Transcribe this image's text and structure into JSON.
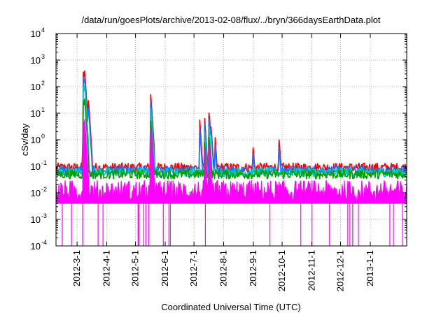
{
  "chart_data": {
    "type": "line",
    "title": "/data/run/goesPlots/archive/2013-02-08/flux/../bryn/366daysEarthData.plot",
    "xlabel": "Coordinated Universal Time (UTC)",
    "ylabel": "cSv/day",
    "yscale": "log",
    "ylim": [
      0.0001,
      10000
    ],
    "xlim": [
      "2012-02-08",
      "2013-02-08"
    ],
    "grid": true,
    "legend": "none",
    "y_ticks": [
      {
        "base": "10",
        "exp": "-4",
        "value": 0.0001
      },
      {
        "base": "10",
        "exp": "-3",
        "value": 0.001
      },
      {
        "base": "10",
        "exp": "-2",
        "value": 0.01
      },
      {
        "base": "10",
        "exp": "-1",
        "value": 0.1
      },
      {
        "base": "10",
        "exp": "0",
        "value": 1
      },
      {
        "base": "10",
        "exp": "1",
        "value": 10
      },
      {
        "base": "10",
        "exp": "2",
        "value": 100
      },
      {
        "base": "10",
        "exp": "3",
        "value": 1000
      },
      {
        "base": "10",
        "exp": "4",
        "value": 10000
      }
    ],
    "x_ticks": [
      "2012-3-1",
      "2012-4-1",
      "2012-5-1",
      "2012-6-1",
      "2012-7-1",
      "2012-8-1",
      "2012-9-1",
      "2012-10-1",
      "2012-11-1",
      "2012-12-1",
      "2013-1-1"
    ],
    "series": [
      {
        "color": "#ff0000",
        "baseline": 0.09,
        "x": [
          "2012-03-07",
          "2012-03-08",
          "2012-03-09",
          "2012-03-10",
          "2012-03-13",
          "2012-05-17",
          "2012-05-18",
          "2012-07-07",
          "2012-07-12",
          "2012-07-17",
          "2012-07-19",
          "2012-07-23",
          "2012-09-01",
          "2012-09-28"
        ],
        "values": [
          0.5,
          350,
          400,
          60,
          30,
          50,
          4,
          6,
          8,
          10,
          3,
          1.5,
          0.5,
          1.0
        ]
      },
      {
        "color": "#1e6fff",
        "baseline": 0.07,
        "x": [
          "2012-03-07",
          "2012-03-08",
          "2012-03-09",
          "2012-03-10",
          "2012-03-13",
          "2012-05-17",
          "2012-05-18",
          "2012-07-07",
          "2012-07-12",
          "2012-07-17",
          "2012-07-19",
          "2012-07-23",
          "2012-09-01",
          "2012-09-28"
        ],
        "values": [
          0.3,
          200,
          220,
          30,
          15,
          30,
          2.5,
          3,
          5,
          6,
          2,
          0.8,
          0.3,
          0.5
        ]
      },
      {
        "color": "#00c8c8",
        "baseline": 0.06,
        "x": [
          "2012-03-08",
          "2012-03-09",
          "2012-03-10",
          "2012-05-17",
          "2012-07-12",
          "2012-07-17"
        ],
        "values": [
          100,
          120,
          15,
          15,
          2.5,
          3
        ]
      },
      {
        "color": "#00a000",
        "baseline": 0.05,
        "x": [
          "2012-03-08",
          "2012-03-09",
          "2012-03-10",
          "2012-05-17",
          "2012-07-12",
          "2012-07-17"
        ],
        "values": [
          30,
          35,
          5,
          5,
          1,
          1.2
        ]
      },
      {
        "color": "#ff00ff",
        "baseline_range": [
          0.004,
          0.03
        ],
        "x": [
          "2012-03-08",
          "2012-03-09",
          "2012-03-10",
          "2012-05-17",
          "2012-07-12",
          "2012-07-17"
        ],
        "values": [
          5,
          6,
          1,
          3,
          0.5,
          0.6
        ],
        "dropouts_to": 0.0001
      }
    ]
  }
}
